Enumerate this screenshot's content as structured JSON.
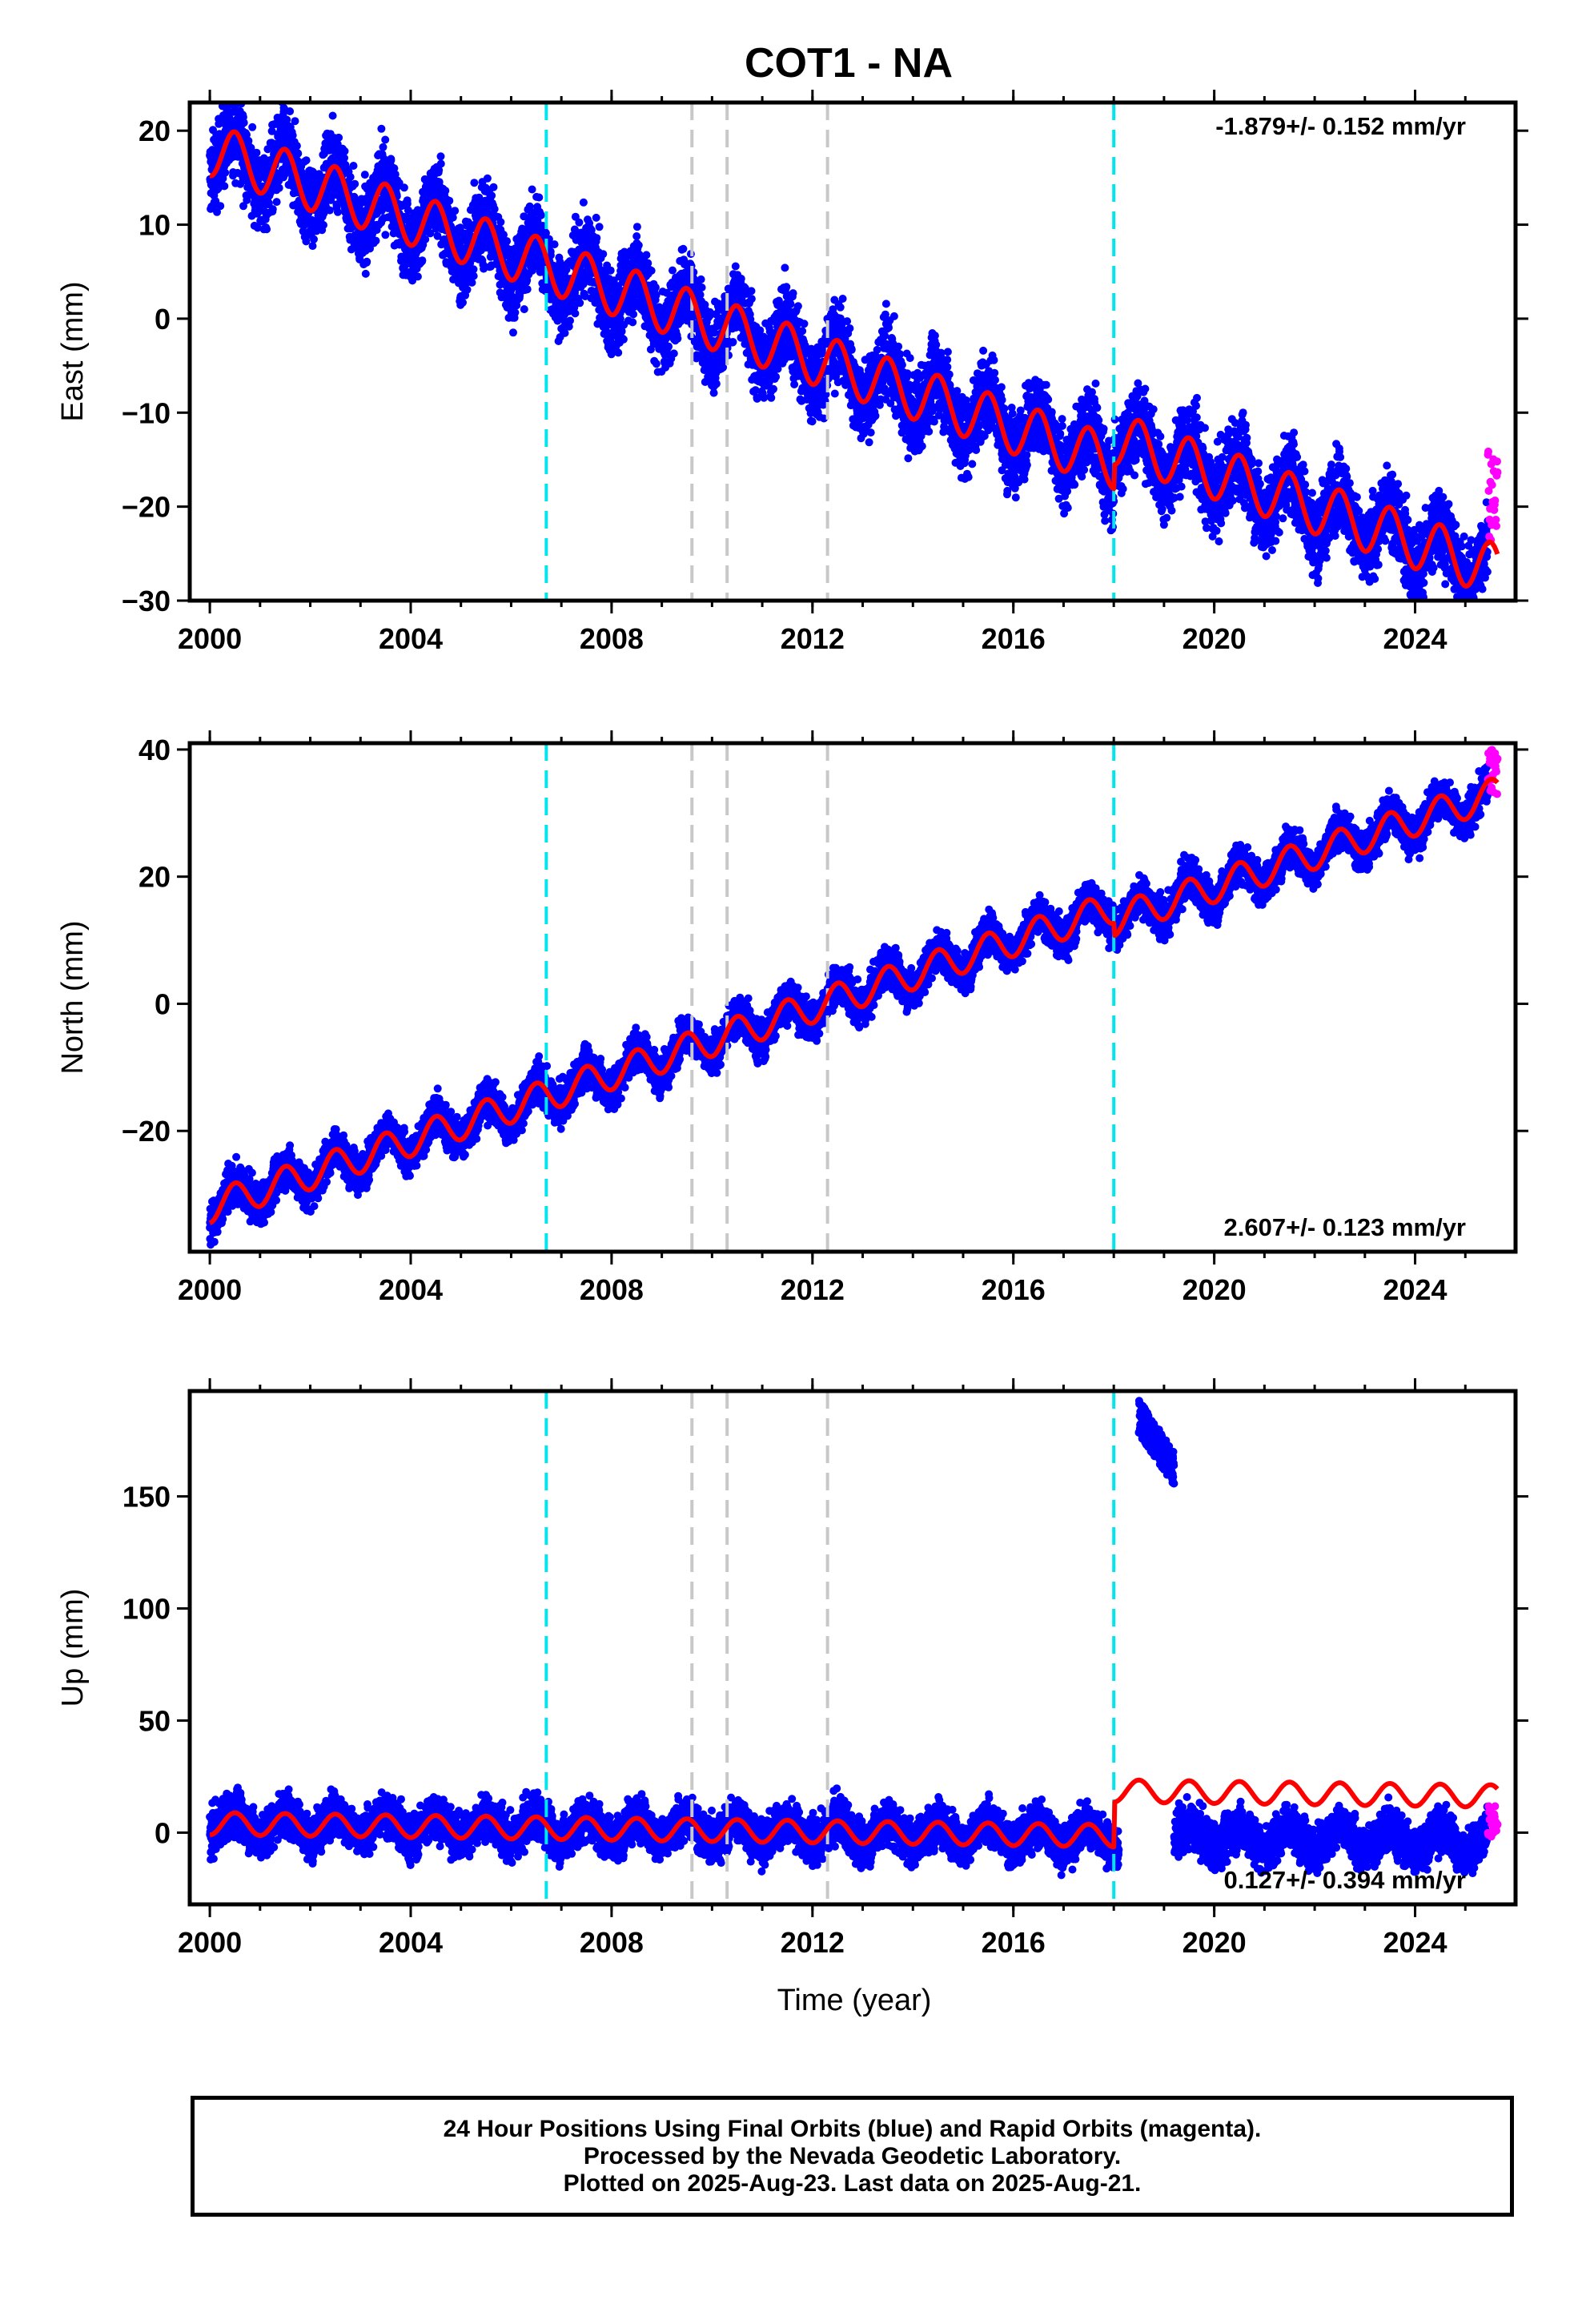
{
  "title": "COT1 - NA",
  "colors": {
    "final_orbits": "#0000ff",
    "rapid_orbits": "#ff00ff",
    "model": "#ff0000",
    "equipment_change": "#00e5ee",
    "earthquake": "#c8c8c8"
  },
  "chart_data": [
    {
      "type": "scatter",
      "name": "east",
      "ylabel": "East (mm)",
      "xlabel": "",
      "xlim": [
        1999.6,
        2026.0
      ],
      "ylim": [
        -30,
        23
      ],
      "xticks": [
        2000,
        2004,
        2008,
        2012,
        2016,
        2020,
        2024
      ],
      "yticks": [
        20,
        10,
        0,
        -10,
        -20,
        -30
      ],
      "rate_label": "-1.879+/- 0.152 mm/yr",
      "rate_position": "top-right",
      "cyan_lines": [
        2006.7,
        2018.0
      ],
      "gray_lines": [
        2009.6,
        2010.3,
        2012.3
      ],
      "trend": {
        "start_year": 2000,
        "start_value": 18.0,
        "slope": -1.85,
        "annual_amplitude": 2.8,
        "offsets": [
          {
            "year": 2018.0,
            "delta": 2.6
          }
        ]
      },
      "scatter": 3.0,
      "rapid": {
        "from": 2025.45,
        "to": 2025.65,
        "range": [
          -24,
          -12
        ]
      }
    },
    {
      "type": "scatter",
      "name": "north",
      "ylabel": "North (mm)",
      "xlabel": "",
      "xlim": [
        1999.6,
        2026.0
      ],
      "ylim": [
        -39,
        41
      ],
      "xticks": [
        2000,
        2004,
        2008,
        2012,
        2016,
        2020,
        2024
      ],
      "yticks": [
        40,
        20,
        0,
        -20
      ],
      "rate_label": "2.607+/- 0.123 mm/yr",
      "rate_position": "bottom-right",
      "cyan_lines": [
        2006.7,
        2018.0
      ],
      "gray_lines": [
        2009.6,
        2010.3,
        2012.3
      ],
      "trend": {
        "start_year": 2000,
        "start_value": -32.0,
        "slope": 2.62,
        "annual_amplitude": 2.5,
        "offsets": [
          {
            "year": 2018.0,
            "delta": -2.0
          }
        ]
      },
      "scatter": 2.2,
      "rapid": {
        "from": 2025.45,
        "to": 2025.65,
        "range": [
          33,
          40
        ]
      }
    },
    {
      "type": "scatter",
      "name": "up",
      "ylabel": "Up (mm)",
      "xlabel": "Time (year)",
      "xlim": [
        1999.6,
        2026.0
      ],
      "ylim": [
        -32,
        197
      ],
      "xticks": [
        2000,
        2004,
        2008,
        2012,
        2016,
        2020,
        2024
      ],
      "yticks": [
        150,
        100,
        50,
        0
      ],
      "rate_label": "0.127+/- 0.394 mm/yr",
      "rate_position": "bottom-right",
      "cyan_lines": [
        2006.7,
        2018.0
      ],
      "gray_lines": [
        2009.6,
        2010.3,
        2012.3
      ],
      "trend": {
        "start_year": 2000,
        "start_value": 4.0,
        "slope": -0.3,
        "annual_amplitude": 5.0,
        "offsets": [
          {
            "year": 2018.0,
            "delta": 20.0
          }
        ]
      },
      "scatter": 7.0,
      "outliers": {
        "from": 2018.5,
        "to": 2019.2,
        "range": [
          155,
          193
        ]
      },
      "gap": {
        "from": 2018.1,
        "to": 2019.2
      },
      "rapid": {
        "from": 2025.45,
        "to": 2025.65,
        "range": [
          -2,
          12
        ]
      }
    }
  ],
  "footer": {
    "line1": "24 Hour Positions Using Final Orbits (blue) and Rapid Orbits (magenta).",
    "line2": "Processed by the Nevada Geodetic Laboratory.",
    "line3": "Plotted on 2025-Aug-23. Last data on 2025-Aug-21."
  }
}
